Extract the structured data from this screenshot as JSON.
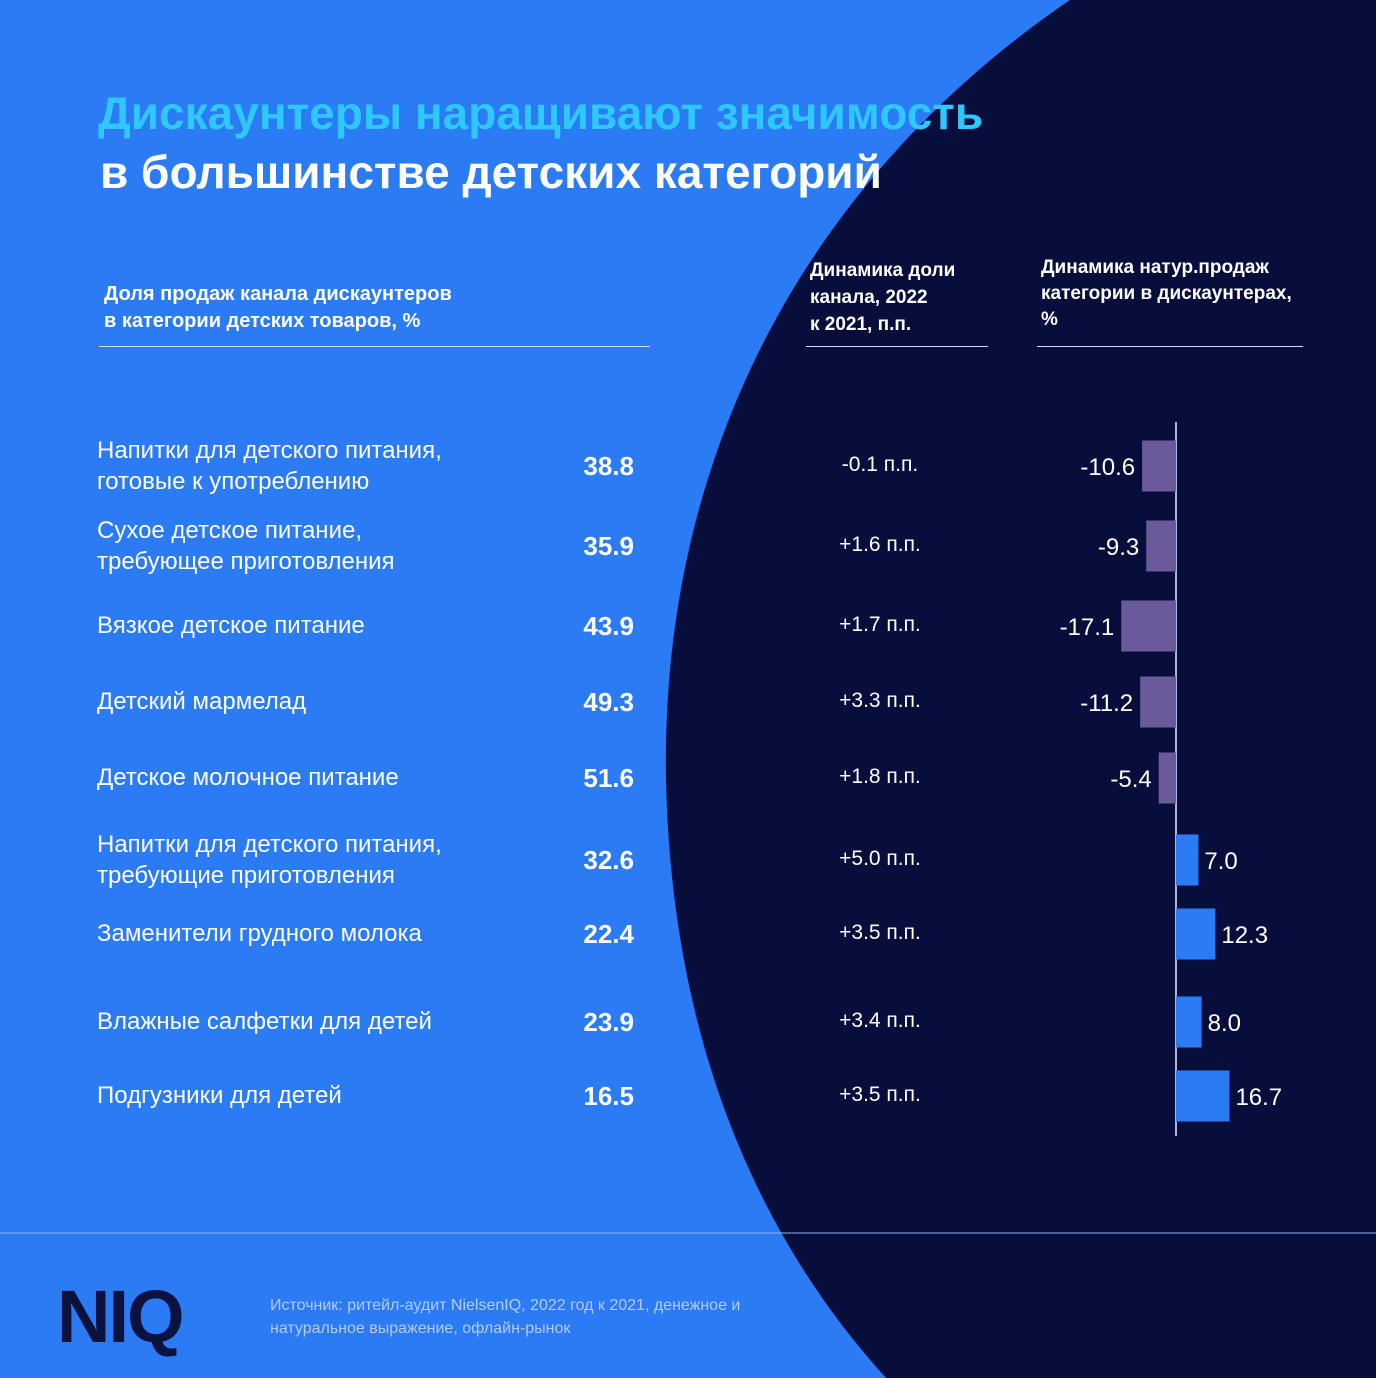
{
  "colors": {
    "background": "#2b7bf4",
    "dark": "#080e3c",
    "title_accent": "#2fc7ff",
    "neg_bar": "#6b5a9b",
    "pos_bar": "#2b7bf4"
  },
  "title": {
    "line1": "Дискаунтеры наращивают значимость",
    "line2": "в большинстве детских категорий"
  },
  "headers": {
    "share": {
      "line1": "Доля продаж канала дискаунтеров",
      "line2": "в категории детских товаров, %"
    },
    "delta": {
      "line1": "Динамика доли",
      "line2": "канала, 2022",
      "line3": "к 2021, п.п."
    },
    "volume": {
      "line1": "Динамика натур.продаж",
      "line2": "категории в дискаунтерах,",
      "line3": "%"
    }
  },
  "rows": [
    {
      "line1": "Напитки для детского питания,",
      "line2": "готовые к употреблению",
      "share": "38.8",
      "delta": "-0.1 п.п."
    },
    {
      "line1": "Сухое детское питание,",
      "line2": "требующее приготовления",
      "share": "35.9",
      "delta": "+1.6 п.п."
    },
    {
      "line1": "Вязкое детское питание",
      "line2": "",
      "share": "43.9",
      "delta": "+1.7 п.п."
    },
    {
      "line1": "Детский мармелад",
      "line2": "",
      "share": "49.3",
      "delta": "+3.3 п.п."
    },
    {
      "line1": "Детское молочное питание",
      "line2": "",
      "share": "51.6",
      "delta": "+1.8 п.п."
    },
    {
      "line1": "Напитки для детского питания,",
      "line2": "требующие приготовления",
      "share": "32.6",
      "delta": "+5.0 п.п."
    },
    {
      "line1": "Заменители грудного молока",
      "line2": "",
      "share": "22.4",
      "delta": "+3.5 п.п."
    },
    {
      "line1": "Влажные салфетки для детей",
      "line2": "",
      "share": "23.9",
      "delta": "+3.4 п.п."
    },
    {
      "line1": "Подгузники для детей",
      "line2": "",
      "share": "16.5",
      "delta": "+3.5 п.п."
    }
  ],
  "chart_data": {
    "type": "bar",
    "orientation": "horizontal",
    "title": "Динамика натур.продаж категории в дискаунтерах, %",
    "categories": [
      "Напитки для детского питания, готовые к употреблению",
      "Сухое детское питание, требующее приготовления",
      "Вязкое детское питание",
      "Детский мармелад",
      "Детское молочное питание",
      "Напитки для детского питания, требующие приготовления",
      "Заменители грудного молока",
      "Влажные салфетки для детей",
      "Подгузники для детей"
    ],
    "values": [
      -10.6,
      -9.3,
      -17.1,
      -11.2,
      -5.4,
      7.0,
      12.3,
      8.0,
      16.7
    ],
    "labels": [
      "-10.6",
      "-9.3",
      "-17.1",
      "-11.2",
      "-5.4",
      "7.0",
      "12.3",
      "8.0",
      "16.7"
    ],
    "xlim": [
      -20,
      20
    ]
  },
  "footer": {
    "logo": "NIQ",
    "source_line1": "Источник: ритейл-аудит NielsenIQ, 2022 год к 2021, денежное и",
    "source_line2": "натуральное выражение, офлайн-рынок"
  }
}
